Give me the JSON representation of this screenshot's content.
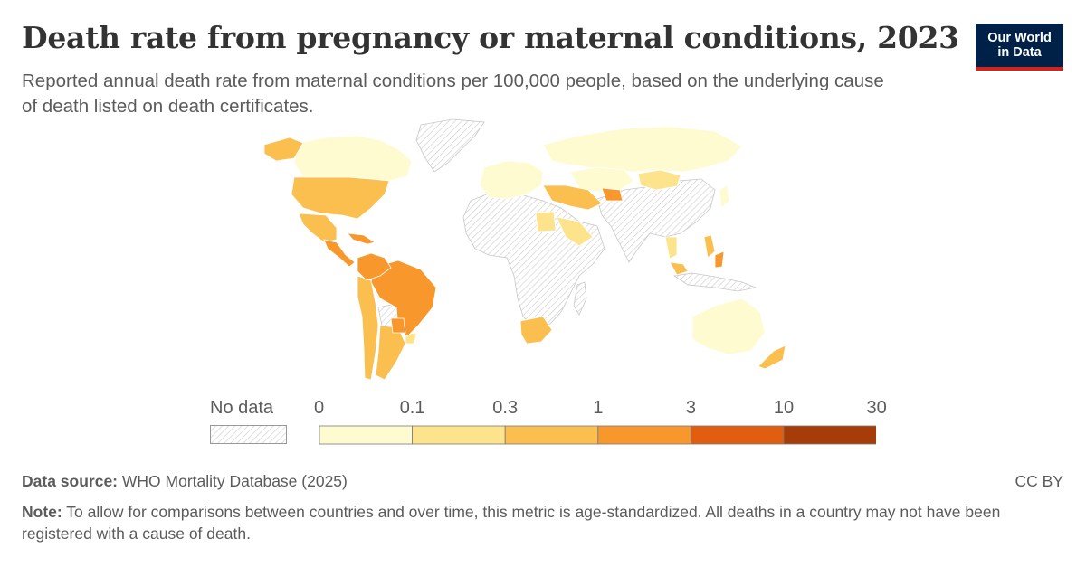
{
  "title": "Death rate from pregnancy or maternal conditions, 2023",
  "subtitle": "Reported annual death rate from maternal conditions per 100,000 people, based on the underlying cause of death listed on death certificates.",
  "logo": {
    "line1": "Our World",
    "line2": "in Data"
  },
  "legend": {
    "no_data_label": "No data",
    "ticks": [
      "0",
      "0.1",
      "0.3",
      "1",
      "3",
      "10",
      "30"
    ],
    "bins": [
      {
        "from": 0,
        "to": 0.1,
        "color": "#fefbd1"
      },
      {
        "from": 0.1,
        "to": 0.3,
        "color": "#fde38c"
      },
      {
        "from": 0.3,
        "to": 1,
        "color": "#fbbf4f"
      },
      {
        "from": 1,
        "to": 3,
        "color": "#f8972b"
      },
      {
        "from": 3,
        "to": 10,
        "color": "#e05d12"
      },
      {
        "from": 10,
        "to": 30,
        "color": "#a63d08"
      }
    ]
  },
  "footer": {
    "source_label": "Data source:",
    "source_text": "WHO Mortality Database (2025)",
    "note_label": "Note:",
    "note_text": "To allow for comparisons between countries and over time, this metric is age-standardized. All deaths in a country may not have been registered with a cause of death.",
    "license": "CC BY"
  },
  "colors": {
    "border": "#ffffff",
    "no_data_hatch": "#d0d0d0",
    "land_outline": "#bdbdbd"
  }
}
